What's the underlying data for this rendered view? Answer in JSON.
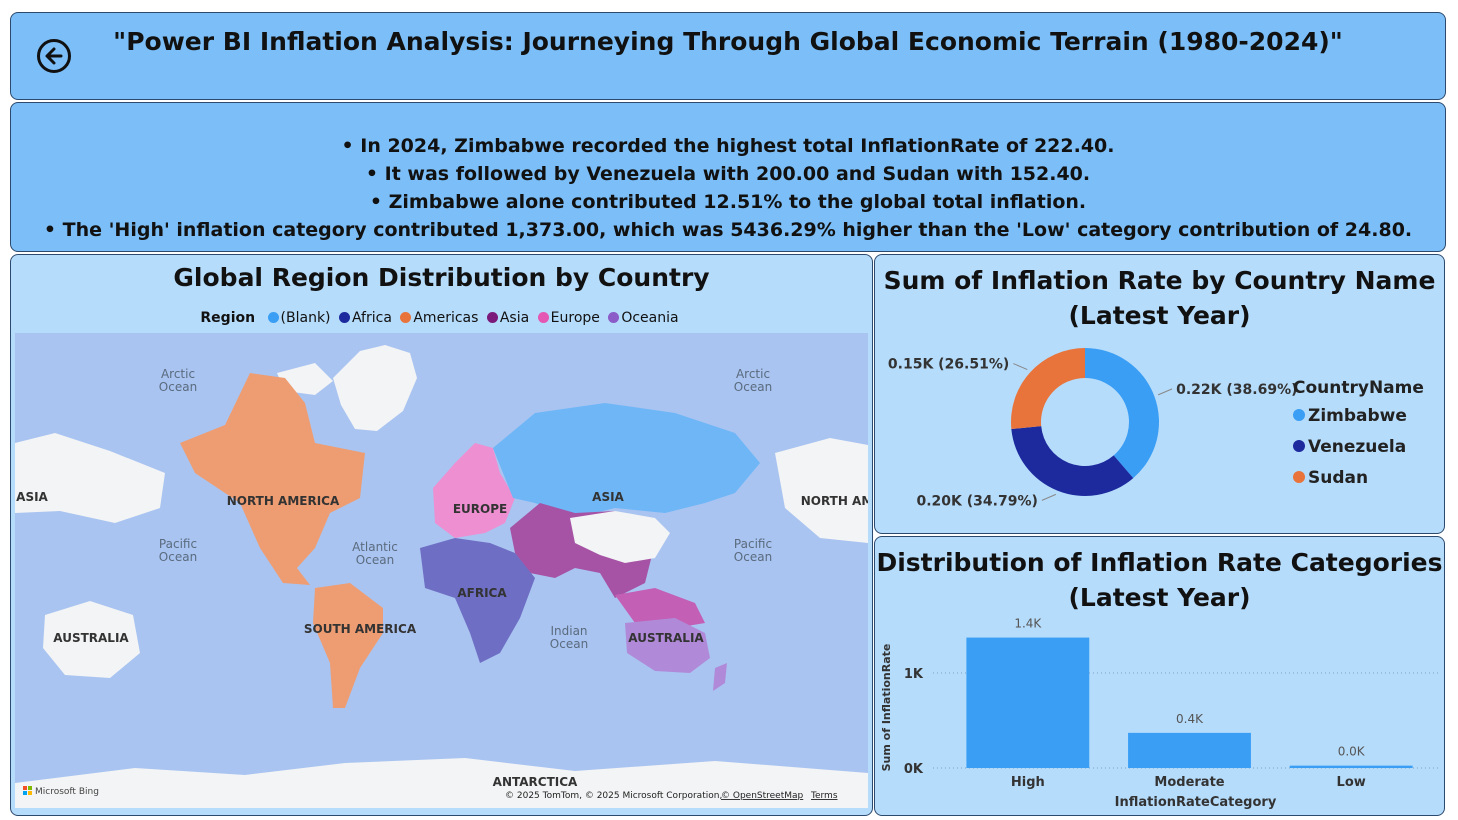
{
  "header": {
    "title": "\"Power BI Inflation Analysis: Journeying Through Global Economic Terrain (1980-2024)\""
  },
  "insights": [
    "• In 2024, Zimbabwe recorded the highest total InflationRate of 222.40.",
    "• It was followed by Venezuela with 200.00 and Sudan with 152.40.",
    "• Zimbabwe alone contributed 12.51% to the global total inflation.",
    "• The 'High' inflation category contributed 1,373.00, which was 5436.29% higher than the 'Low' category contribution of 24.80."
  ],
  "map": {
    "title": "Global Region Distribution by Country",
    "legend_title": "Region",
    "regions": [
      {
        "name": "(Blank)",
        "color": "#3a9ef5"
      },
      {
        "name": "Africa",
        "color": "#1c2a9e"
      },
      {
        "name": "Americas",
        "color": "#e8743b"
      },
      {
        "name": "Asia",
        "color": "#7b1a7a"
      },
      {
        "name": "Europe",
        "color": "#e457b2"
      },
      {
        "name": "Oceania",
        "color": "#8b5bc7"
      }
    ],
    "labels": {
      "arctic_left": "Arctic",
      "arctic_right": "Arctic",
      "ocean": "Ocean",
      "asia_left": "ASIA",
      "north_america": "NORTH AMERICA",
      "europe": "EUROPE",
      "asia": "ASIA",
      "north_america_cut": "NORTH AM",
      "pacific_left": "Pacific",
      "atlantic": "Atlantic",
      "pacific_right": "Pacific",
      "africa": "AFRICA",
      "australia_left": "AUSTRALIA",
      "south_america": "SOUTH AMERICA",
      "indian": "Indian",
      "australia": "AUSTRALIA",
      "antarctica": "ANTARCTICA"
    },
    "attribution": {
      "bing": "Microsoft Bing",
      "copyright": "© 2025 TomTom, © 2025 Microsoft Corporation,",
      "osm": "© OpenStreetMap",
      "terms": "Terms"
    }
  },
  "chart_data": [
    {
      "type": "pie",
      "title": "Sum of Inflation Rate by Country Name (Latest Year)",
      "title_lines": [
        "Sum of Inflation Rate by Country Name",
        "(Latest Year)"
      ],
      "legend_title": "CountryName",
      "slices": [
        {
          "name": "Zimbabwe",
          "value": 222.4,
          "label": "0.22K (38.69%)",
          "color": "#3a9ef5"
        },
        {
          "name": "Venezuela",
          "value": 200.0,
          "label": "0.20K (34.79%)",
          "color": "#1c2a9e"
        },
        {
          "name": "Sudan",
          "value": 152.4,
          "label": "0.15K (26.51%)",
          "color": "#e8743b"
        }
      ]
    },
    {
      "type": "bar",
      "title": "Distribution of Inflation Rate Categories (Latest Year)",
      "title_lines": [
        "Distribution of Inflation Rate Categories",
        "(Latest Year)"
      ],
      "categories": [
        "High",
        "Moderate",
        "Low"
      ],
      "values": [
        1373,
        370,
        24.8
      ],
      "data_labels": [
        "1.4K",
        "0.4K",
        "0.0K"
      ],
      "xlabel": "InflationRateCategory",
      "ylabel": "Sum of InflationRate",
      "ylim": [
        0,
        1400
      ],
      "yticks": [
        {
          "value": 0,
          "label": "0K"
        },
        {
          "value": 1000,
          "label": "1K"
        }
      ],
      "color": "#3a9ef5",
      "grid": true
    }
  ]
}
